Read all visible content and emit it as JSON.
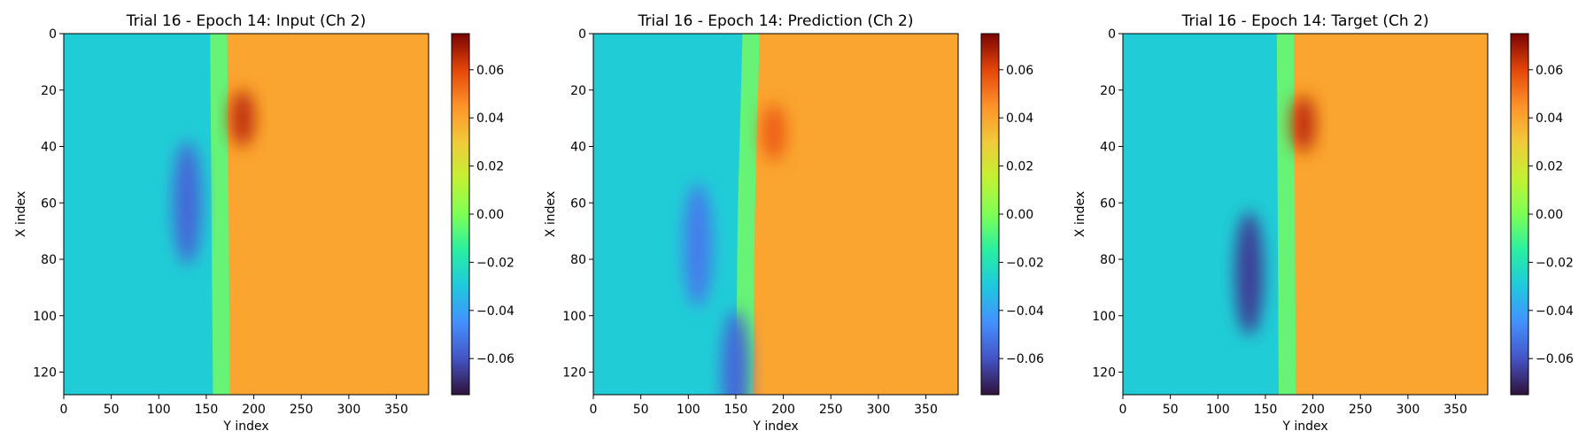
{
  "chart_data": [
    {
      "type": "heatmap",
      "title": "Trial 16 - Epoch 14: Input (Ch 2)",
      "xlabel": "Y index",
      "ylabel": "X index",
      "xlim": [
        0,
        384
      ],
      "ylim": [
        128,
        0
      ],
      "xticks": [
        "0",
        "50",
        "100",
        "150",
        "200",
        "250",
        "300",
        "350"
      ],
      "yticks": [
        "0",
        "20",
        "40",
        "60",
        "80",
        "100",
        "120"
      ],
      "colorbar": {
        "min": -0.075,
        "max": 0.075,
        "ticks": [
          "0.06",
          "0.04",
          "0.02",
          "0.00",
          "−0.02",
          "−0.04",
          "−0.06"
        ]
      },
      "colormap": "turbo",
      "field": {
        "front_y_at_x": [
          [
            0,
            172
          ],
          [
            128,
            175
          ]
        ],
        "left_level": -0.028,
        "right_level": 0.04,
        "features": [
          {
            "kind": "low",
            "x": 60,
            "y": 130,
            "value": -0.055
          },
          {
            "kind": "high",
            "x": 30,
            "y": 188,
            "value": 0.065
          }
        ]
      }
    },
    {
      "type": "heatmap",
      "title": "Trial 16 - Epoch 14: Prediction (Ch 2)",
      "xlabel": "Y index",
      "ylabel": "X index",
      "xlim": [
        0,
        384
      ],
      "ylim": [
        128,
        0
      ],
      "xticks": [
        "0",
        "50",
        "100",
        "150",
        "200",
        "250",
        "300",
        "350"
      ],
      "yticks": [
        "0",
        "20",
        "40",
        "60",
        "80",
        "100",
        "120"
      ],
      "colorbar": {
        "min": -0.075,
        "max": 0.075,
        "ticks": [
          "0.06",
          "0.04",
          "0.02",
          "0.00",
          "−0.02",
          "−0.04",
          "−0.06"
        ]
      },
      "colormap": "turbo",
      "field": {
        "front_y_at_x": [
          [
            0,
            175
          ],
          [
            64,
            170
          ],
          [
            128,
            168
          ]
        ],
        "left_level": -0.028,
        "right_level": 0.04,
        "features": [
          {
            "kind": "low",
            "x": 75,
            "y": 110,
            "value": -0.05
          },
          {
            "kind": "low",
            "x": 120,
            "y": 150,
            "value": -0.055
          },
          {
            "kind": "high",
            "x": 35,
            "y": 190,
            "value": 0.055
          }
        ]
      }
    },
    {
      "type": "heatmap",
      "title": "Trial 16 - Epoch 14: Target (Ch 2)",
      "xlabel": "Y index",
      "ylabel": "X index",
      "xlim": [
        0,
        384
      ],
      "ylim": [
        128,
        0
      ],
      "xticks": [
        "0",
        "50",
        "100",
        "150",
        "200",
        "250",
        "300",
        "350"
      ],
      "yticks": [
        "0",
        "20",
        "40",
        "60",
        "80",
        "100",
        "120"
      ],
      "colorbar": {
        "min": -0.075,
        "max": 0.075,
        "ticks": [
          "0.06",
          "0.04",
          "0.02",
          "0.00",
          "−0.02",
          "−0.04",
          "−0.06"
        ]
      },
      "colormap": "turbo",
      "field": {
        "front_y_at_x": [
          [
            0,
            180
          ],
          [
            128,
            182
          ]
        ],
        "left_level": -0.028,
        "right_level": 0.04,
        "features": [
          {
            "kind": "low",
            "x": 85,
            "y": 133,
            "value": -0.065
          },
          {
            "kind": "high",
            "x": 32,
            "y": 190,
            "value": 0.065
          }
        ]
      }
    }
  ]
}
